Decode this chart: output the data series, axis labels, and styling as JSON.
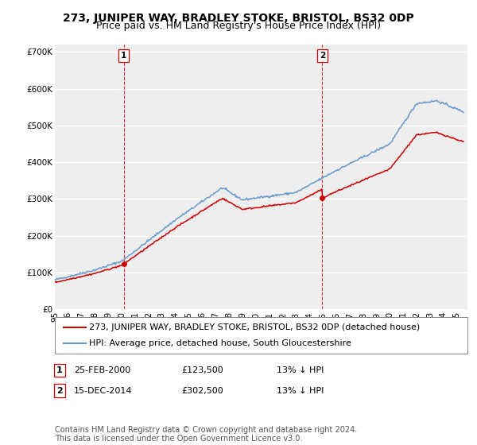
{
  "title": "273, JUNIPER WAY, BRADLEY STOKE, BRISTOL, BS32 0DP",
  "subtitle": "Price paid vs. HM Land Registry's House Price Index (HPI)",
  "ylabel_ticks": [
    "£0",
    "£100K",
    "£200K",
    "£300K",
    "£400K",
    "£500K",
    "£600K",
    "£700K"
  ],
  "ytick_values": [
    0,
    100000,
    200000,
    300000,
    400000,
    500000,
    600000,
    700000
  ],
  "ylim": [
    0,
    720000
  ],
  "sale1": {
    "date": "25-FEB-2000",
    "price": 123500,
    "label": "1",
    "hpi_rel": "13% ↓ HPI",
    "year": 2000.15
  },
  "sale2": {
    "date": "15-DEC-2014",
    "price": 302500,
    "label": "2",
    "hpi_rel": "13% ↓ HPI",
    "year": 2014.96
  },
  "legend_line1": "273, JUNIPER WAY, BRADLEY STOKE, BRISTOL, BS32 0DP (detached house)",
  "legend_line2": "HPI: Average price, detached house, South Gloucestershire",
  "footer": "Contains HM Land Registry data © Crown copyright and database right 2024.\nThis data is licensed under the Open Government Licence v3.0.",
  "line_color_red": "#cc0000",
  "line_color_blue": "#6699cc",
  "background_color": "#ffffff",
  "plot_bg_color": "#eeeeee",
  "grid_color": "#ffffff",
  "title_fontsize": 10,
  "subtitle_fontsize": 9,
  "tick_fontsize": 7.5,
  "legend_fontsize": 8,
  "footer_fontsize": 7,
  "xlim_start": 1995.0,
  "xlim_end": 2025.8,
  "xtick_years": [
    1995,
    1996,
    1997,
    1998,
    1999,
    2000,
    2001,
    2002,
    2003,
    2004,
    2005,
    2006,
    2007,
    2008,
    2009,
    2010,
    2011,
    2012,
    2013,
    2014,
    2015,
    2016,
    2017,
    2018,
    2019,
    2020,
    2021,
    2022,
    2023,
    2024,
    2025
  ]
}
